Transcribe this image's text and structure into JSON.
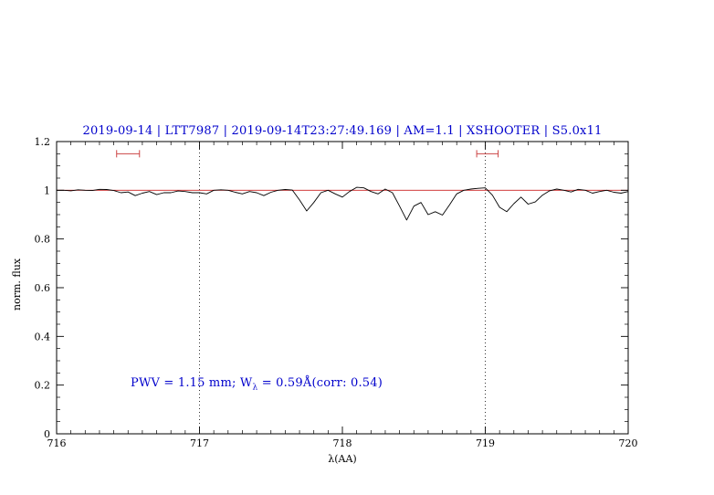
{
  "page": {
    "background": "#ffffff",
    "accent_blue": "#0000cc",
    "accent_red": "#cc2222"
  },
  "title": {
    "text": "2019-09-14 | LTT7987 | 2019-09-14T23:27:49.169 | AM=1.1 | XSHOOTER | S5.0x11",
    "color": "#0000cc"
  },
  "chart_data": {
    "type": "line",
    "title": "2019-09-14 | LTT7987 | 2019-09-14T23:27:49.169 | AM=1.1 | XSHOOTER | S5.0x11",
    "xlabel": "λ(AA)",
    "ylabel": "norm. flux",
    "xlim": [
      716,
      720
    ],
    "ylim": [
      0,
      1.2
    ],
    "grid": false,
    "legend": "none",
    "x_ticks": {
      "major": [
        716,
        717,
        718,
        719,
        720
      ],
      "labels": [
        "716",
        "717",
        "718",
        "719",
        "720"
      ],
      "minor_step": 0.1
    },
    "y_ticks": {
      "major": [
        0,
        0.2,
        0.4,
        0.6,
        0.8,
        1,
        1.2
      ],
      "labels": [
        "0",
        "0.2",
        "0.4",
        "0.6",
        "0.8",
        "1",
        "1.2"
      ],
      "minor_step": 0.05
    },
    "guides": {
      "vlines": [
        717,
        719
      ],
      "vline_style": "dotted",
      "hline": 1.0,
      "hline_color": "#cc2222"
    },
    "interval_markers": [
      {
        "x1": 716.42,
        "x2": 716.58,
        "y": 1.15,
        "color": "#cc4444"
      },
      {
        "x1": 718.94,
        "x2": 719.09,
        "y": 1.15,
        "color": "#cc4444"
      }
    ],
    "annotation": {
      "prefix": "PWV = 1.15 mm; W",
      "sub": "λ",
      "suffix": " = 0.59Å(corr: 0.54)",
      "color": "#0000cc",
      "x": 717.55,
      "y": 0.2
    },
    "series": [
      {
        "name": "normalized spectrum",
        "color": "#000000",
        "points": [
          [
            716.0,
            1.0
          ],
          [
            716.05,
            1.0
          ],
          [
            716.1,
            0.998
          ],
          [
            716.15,
            1.002
          ],
          [
            716.2,
            1.0
          ],
          [
            716.25,
            0.999
          ],
          [
            716.3,
            1.004
          ],
          [
            716.35,
            1.003
          ],
          [
            716.4,
            0.999
          ],
          [
            716.45,
            0.99
          ],
          [
            716.5,
            0.993
          ],
          [
            716.55,
            0.978
          ],
          [
            716.6,
            0.988
          ],
          [
            716.65,
            0.995
          ],
          [
            716.7,
            0.982
          ],
          [
            716.75,
            0.99
          ],
          [
            716.8,
            0.99
          ],
          [
            716.85,
            0.997
          ],
          [
            716.9,
            0.995
          ],
          [
            716.95,
            0.99
          ],
          [
            717.0,
            0.99
          ],
          [
            717.05,
            0.985
          ],
          [
            717.1,
            1.0
          ],
          [
            717.15,
            1.002
          ],
          [
            717.2,
            1.0
          ],
          [
            717.25,
            0.992
          ],
          [
            717.3,
            0.985
          ],
          [
            717.35,
            0.995
          ],
          [
            717.4,
            0.99
          ],
          [
            717.45,
            0.978
          ],
          [
            717.5,
            0.992
          ],
          [
            717.55,
            1.0
          ],
          [
            717.6,
            1.003
          ],
          [
            717.65,
            1.001
          ],
          [
            717.7,
            0.96
          ],
          [
            717.75,
            0.915
          ],
          [
            717.8,
            0.95
          ],
          [
            717.85,
            0.99
          ],
          [
            717.9,
            1.0
          ],
          [
            717.95,
            0.985
          ],
          [
            718.0,
            0.972
          ],
          [
            718.05,
            0.995
          ],
          [
            718.1,
            1.012
          ],
          [
            718.15,
            1.01
          ],
          [
            718.2,
            0.995
          ],
          [
            718.25,
            0.985
          ],
          [
            718.3,
            1.005
          ],
          [
            718.35,
            0.99
          ],
          [
            718.4,
            0.935
          ],
          [
            718.45,
            0.878
          ],
          [
            718.5,
            0.935
          ],
          [
            718.55,
            0.95
          ],
          [
            718.6,
            0.9
          ],
          [
            718.65,
            0.912
          ],
          [
            718.7,
            0.898
          ],
          [
            718.75,
            0.94
          ],
          [
            718.8,
            0.985
          ],
          [
            718.85,
            1.0
          ],
          [
            718.9,
            1.005
          ],
          [
            718.95,
            1.008
          ],
          [
            719.0,
            1.01
          ],
          [
            719.05,
            0.98
          ],
          [
            719.1,
            0.93
          ],
          [
            719.15,
            0.912
          ],
          [
            719.2,
            0.945
          ],
          [
            719.25,
            0.972
          ],
          [
            719.3,
            0.943
          ],
          [
            719.35,
            0.952
          ],
          [
            719.4,
            0.98
          ],
          [
            719.45,
            0.998
          ],
          [
            719.5,
            1.005
          ],
          [
            719.55,
            1.0
          ],
          [
            719.6,
            0.993
          ],
          [
            719.65,
            1.004
          ],
          [
            719.7,
            1.0
          ],
          [
            719.75,
            0.988
          ],
          [
            719.8,
            0.995
          ],
          [
            719.85,
            1.0
          ],
          [
            719.9,
            0.992
          ],
          [
            719.95,
            0.988
          ],
          [
            720.0,
            0.995
          ]
        ]
      }
    ]
  }
}
